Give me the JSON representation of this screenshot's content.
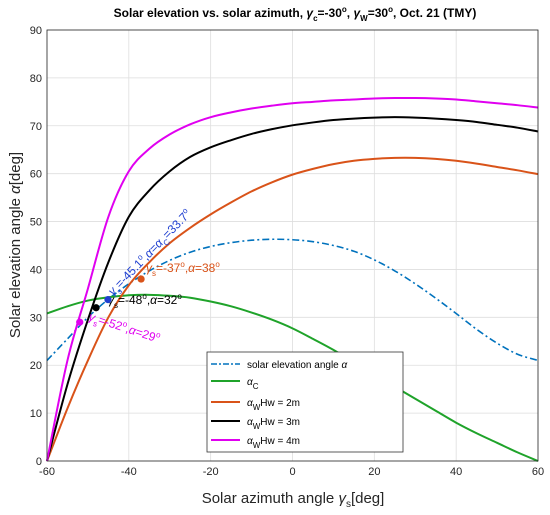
{
  "chart_data": {
    "type": "line",
    "title": "Solar elevation vs. solar azimuth, γc=-30°, γW=30°, Oct. 21 (TMY)",
    "xlabel": "Solar azimuth angle γs[deg]",
    "ylabel": "Solar elevation angle α[deg]",
    "xlim": [
      -60,
      60
    ],
    "ylim": [
      0,
      90
    ],
    "xticks": [
      -60,
      -40,
      -20,
      0,
      20,
      40,
      60
    ],
    "yticks": [
      0,
      10,
      20,
      30,
      40,
      50,
      60,
      70,
      80,
      90
    ],
    "grid": true,
    "legend": "bottom-center",
    "x": [
      -60,
      -55,
      -50,
      -45,
      -40,
      -35,
      -30,
      -25,
      -20,
      -15,
      -10,
      -5,
      0,
      5,
      10,
      15,
      20,
      25,
      30,
      35,
      40,
      45,
      50,
      55,
      60
    ],
    "series": [
      {
        "name": "solar elevation angle α",
        "color": "#0072BD",
        "dash": true,
        "values": [
          21.0,
          25.5,
          30.0,
          33.8,
          37.0,
          39.7,
          41.9,
          43.6,
          44.8,
          45.6,
          46.1,
          46.3,
          46.2,
          45.8,
          45.0,
          43.8,
          42.0,
          39.7,
          37.0,
          34.0,
          30.8,
          27.5,
          24.6,
          22.3,
          21.0
        ]
      },
      {
        "name": "αC",
        "color": "#1FA32A",
        "values": [
          30.8,
          32.3,
          33.5,
          34.2,
          34.6,
          34.7,
          34.5,
          34.1,
          33.3,
          32.3,
          31.0,
          29.5,
          27.7,
          25.5,
          23.2,
          20.6,
          18.0,
          15.5,
          13.0,
          10.5,
          8.0,
          5.8,
          3.8,
          1.8,
          0.0
        ]
      },
      {
        "name": "αW Hw = 2m",
        "color": "#D95319",
        "values": [
          0.0,
          11.0,
          21.0,
          30.0,
          36.7,
          41.5,
          45.5,
          48.7,
          51.5,
          54.0,
          56.3,
          58.2,
          59.8,
          61.0,
          62.0,
          62.7,
          63.1,
          63.3,
          63.3,
          63.1,
          62.7,
          62.1,
          61.4,
          60.7,
          59.9
        ]
      },
      {
        "name": "αW Hw = 3m",
        "color": "#000000",
        "values": [
          0.0,
          16.0,
          29.5,
          41.5,
          51.0,
          56.5,
          60.5,
          63.5,
          65.5,
          67.0,
          68.3,
          69.3,
          70.1,
          70.7,
          71.2,
          71.5,
          71.7,
          71.8,
          71.7,
          71.5,
          71.2,
          70.8,
          70.2,
          69.6,
          68.8
        ]
      },
      {
        "name": "αW Hw = 4m",
        "color": "#E000F0",
        "values": [
          0.0,
          21.0,
          36.0,
          51.0,
          60.5,
          65.2,
          68.2,
          70.3,
          71.8,
          72.8,
          73.6,
          74.2,
          74.7,
          75.0,
          75.3,
          75.5,
          75.7,
          75.8,
          75.8,
          75.7,
          75.5,
          75.1,
          74.7,
          74.3,
          73.8
        ]
      }
    ],
    "markers": [
      {
        "x": -45.1,
        "y": 33.7,
        "color": "#1F3FD0"
      },
      {
        "x": -37,
        "y": 38,
        "color": "#D95319"
      },
      {
        "x": -48,
        "y": 32,
        "color": "#000000"
      },
      {
        "x": -52,
        "y": 29,
        "color": "#E000F0"
      }
    ],
    "annotations": [
      {
        "id": "blue",
        "text": "γs=-45.1°, α=αC=33.7°",
        "color": "#1F3FD0"
      },
      {
        "id": "red",
        "text": "γs=-37°, α=38°",
        "color": "#D95319"
      },
      {
        "id": "black",
        "text": "γs=-48°, α=32°",
        "color": "#000000"
      },
      {
        "id": "magenta",
        "text": "γs=-52°, α=29°",
        "color": "#E000F0"
      }
    ]
  }
}
